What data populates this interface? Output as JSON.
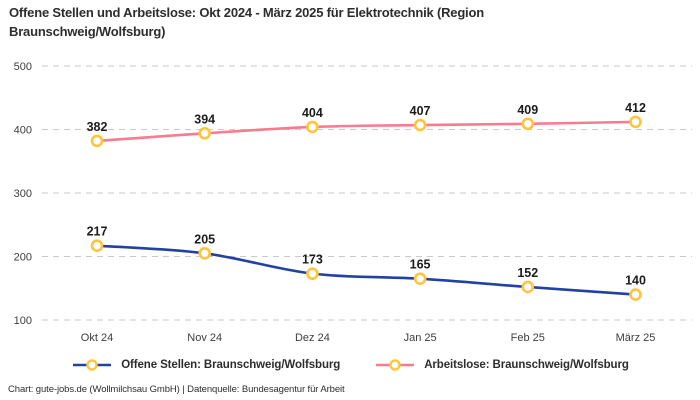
{
  "title": "Offene Stellen und Arbeitslose: Okt 2024 - März 2025 für Elektrotechnik (Region Braunschweig/Wolfsburg)",
  "footer": "Chart: gute-jobs.de (Wollmilchsau GmbH) | Datenquelle: Bundesagentur für Arbeit",
  "colors": {
    "background": "#ffffff",
    "title_text": "#2d2d2d",
    "axis_text": "#3d3d3d",
    "grid": "#c9c9c9",
    "data_label_text": "#1c1c1c"
  },
  "chart_data": {
    "type": "line",
    "title": "Offene Stellen und Arbeitslose: Okt 2024 - März 2025 für Elektrotechnik (Region Braunschweig/Wolfsburg)",
    "categories": [
      "Okt 24",
      "Nov 24",
      "Dez 24",
      "Jan 25",
      "Feb 25",
      "März 25"
    ],
    "series": [
      {
        "name": "Offene Stellen: Braunschweig/Wolfsburg",
        "slug": "offene-stellen",
        "color": "#2342a0",
        "values": [
          217,
          205,
          173,
          165,
          152,
          140
        ]
      },
      {
        "name": "Arbeitslose: Braunschweig/Wolfsburg",
        "slug": "arbeitslose",
        "color": "#f87b90",
        "values": [
          382,
          394,
          404,
          407,
          409,
          412
        ]
      }
    ],
    "marker_color": "#ffc43d",
    "marker_fill": "#ffffff",
    "ylim": [
      100,
      500
    ],
    "yticks": [
      100,
      200,
      300,
      400,
      500
    ],
    "grid": true,
    "grid_style": "dashed",
    "data_labels": true,
    "legend_position": "bottom"
  }
}
